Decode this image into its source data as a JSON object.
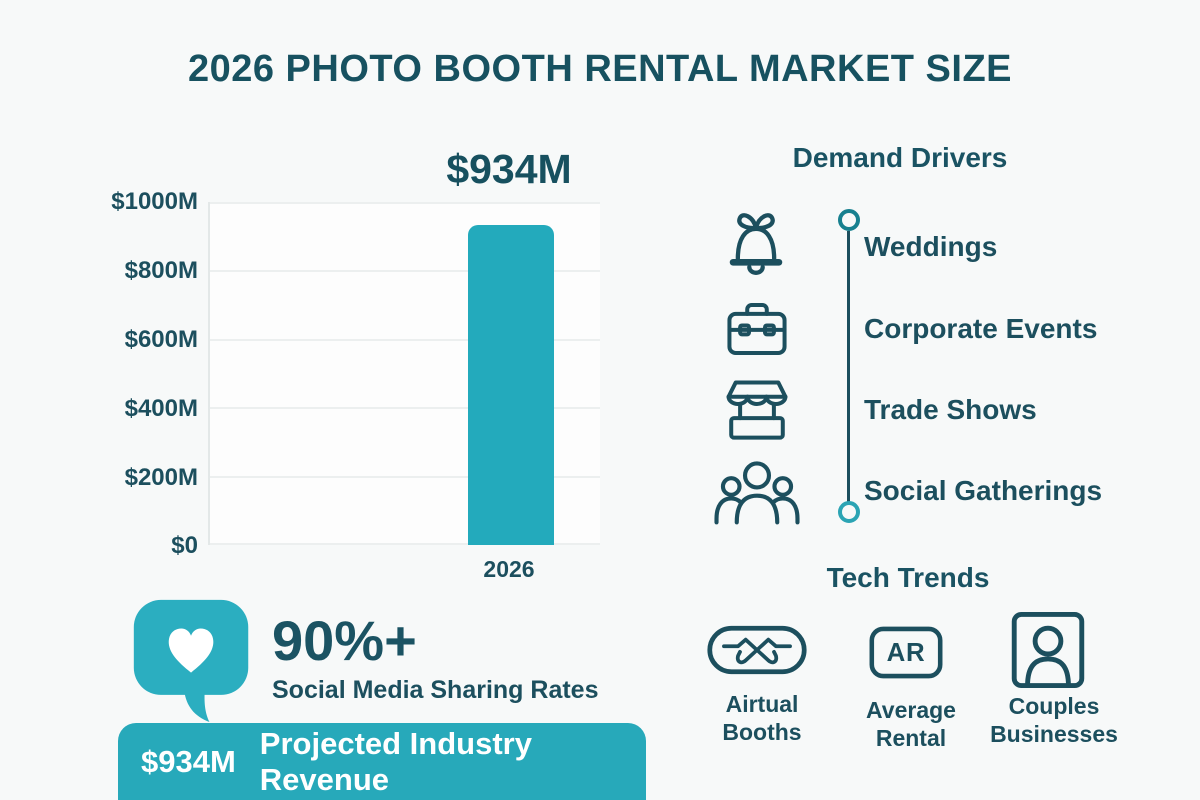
{
  "page": {
    "title": "2026 PHOTO BOOTH RENTAL MARKET SIZE"
  },
  "colors": {
    "dark_teal_text": "#1c4f5e",
    "accent_teal": "#23aabc",
    "banner_teal": "#27a9ba",
    "bubble_teal": "#2baec0",
    "background": "#f7f9f9"
  },
  "chart_data": {
    "type": "bar",
    "title": "2026 Photo Booth Rental Market Size",
    "categories": [
      "2026"
    ],
    "values": [
      934
    ],
    "bar_label": "$934M",
    "bar_color": "#23aabc",
    "xlabel": "",
    "ylabel": "",
    "ylim": [
      0,
      1000
    ],
    "yticks": [
      "$1000M",
      "$800M",
      "$600M",
      "$400M",
      "$200M",
      "$0"
    ],
    "grid": true,
    "legend": false
  },
  "demand_drivers": {
    "title": "Demand Drivers",
    "items": [
      {
        "icon": "bell-icon",
        "label": "Weddings"
      },
      {
        "icon": "briefcase-icon",
        "label": "Corporate Events"
      },
      {
        "icon": "market-stall-icon",
        "label": "Trade Shows"
      },
      {
        "icon": "people-group-icon",
        "label": "Social Gatherings"
      }
    ]
  },
  "tech_trends": {
    "title": "Tech Trends",
    "items": [
      {
        "icon": "vr-goggles-icon",
        "line1": "Airtual",
        "line2": "Booths"
      },
      {
        "icon": "ar-badge-icon",
        "badge": "AR",
        "line1": "Average",
        "line2": "Rental"
      },
      {
        "icon": "person-frame-icon",
        "line1": "Couples",
        "line2": "Businesses"
      }
    ]
  },
  "social_stat": {
    "value": "90%+",
    "label": "Social Media Sharing Rates"
  },
  "revenue_banner": {
    "value": "$934M",
    "label": "Projected Industry Revenue"
  }
}
